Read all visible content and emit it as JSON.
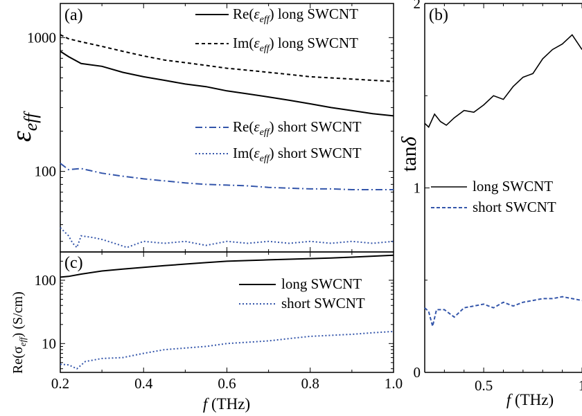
{
  "chart_data": [
    {
      "panel": "(a)",
      "type": "line",
      "ylabel_main": "ε",
      "ylabel_sub": "eff",
      "yscale": "log",
      "xlim": [
        0.2,
        1.0
      ],
      "ylim": [
        25,
        1800
      ],
      "yticks": [
        {
          "v": 1000,
          "label": "1000"
        },
        {
          "v": 100,
          "label": "100"
        }
      ],
      "legend": [
        {
          "pre": "Re(",
          "sym": "ε",
          "sub": "eff",
          "post": ") long SWCNT"
        },
        {
          "pre": "Im(",
          "sym": "ε",
          "sub": "eff",
          "post": ") long SWCNT"
        },
        {
          "pre": "Re(",
          "sym": "ε",
          "sub": "eff",
          "post": ") short SWCNT"
        },
        {
          "pre": "Im(",
          "sym": "ε",
          "sub": "eff",
          "post": ") short SWCNT"
        }
      ],
      "series": [
        {
          "id": "re-long",
          "color": "#000000",
          "dash": "",
          "width": 2,
          "x": [
            0.2,
            0.22,
            0.25,
            0.3,
            0.35,
            0.4,
            0.45,
            0.5,
            0.55,
            0.6,
            0.65,
            0.7,
            0.75,
            0.8,
            0.85,
            0.9,
            0.95,
            1.0
          ],
          "y": [
            790,
            720,
            640,
            610,
            550,
            510,
            480,
            450,
            430,
            400,
            380,
            360,
            340,
            320,
            300,
            285,
            270,
            260
          ]
        },
        {
          "id": "im-long",
          "color": "#000000",
          "dash": "5,4",
          "width": 2,
          "x": [
            0.2,
            0.22,
            0.25,
            0.3,
            0.35,
            0.4,
            0.45,
            0.5,
            0.55,
            0.6,
            0.65,
            0.7,
            0.75,
            0.8,
            0.85,
            0.9,
            0.95,
            1.0
          ],
          "y": [
            1050,
            980,
            930,
            860,
            790,
            730,
            680,
            650,
            620,
            590,
            570,
            550,
            530,
            510,
            500,
            490,
            480,
            470
          ]
        },
        {
          "id": "re-short",
          "color": "#3355aa",
          "dash": "10,4,2,4",
          "width": 2,
          "x": [
            0.2,
            0.22,
            0.25,
            0.3,
            0.35,
            0.4,
            0.45,
            0.5,
            0.55,
            0.6,
            0.65,
            0.7,
            0.75,
            0.8,
            0.85,
            0.9,
            0.95,
            1.0
          ],
          "y": [
            115,
            103,
            105,
            97,
            92,
            88,
            85,
            82,
            80,
            79,
            78,
            76,
            75,
            74,
            74,
            73,
            73,
            73
          ]
        },
        {
          "id": "im-short",
          "color": "#3355aa",
          "dash": "2,3",
          "width": 2,
          "x": [
            0.2,
            0.22,
            0.23,
            0.24,
            0.25,
            0.28,
            0.3,
            0.33,
            0.36,
            0.4,
            0.45,
            0.5,
            0.55,
            0.6,
            0.65,
            0.7,
            0.75,
            0.8,
            0.85,
            0.9,
            0.95,
            1.0
          ],
          "y": [
            38,
            33,
            29,
            27,
            33,
            32,
            31,
            29,
            27,
            30,
            29,
            30,
            28,
            30,
            29,
            30,
            29,
            30,
            29,
            30,
            29,
            30
          ]
        }
      ]
    },
    {
      "panel": "(c)",
      "type": "line",
      "ylabel": "Re(σ",
      "ylabel_sub": "eff",
      "ylabel_post": ")  (S/cm)",
      "yscale": "log",
      "xlim": [
        0.2,
        1.0
      ],
      "ylim": [
        3.5,
        280
      ],
      "xlabel_main": "f",
      "xlabel_post": " (THz)",
      "xticks": [
        {
          "v": 0.2,
          "label": "0.2"
        },
        {
          "v": 0.4,
          "label": "0.4"
        },
        {
          "v": 0.6,
          "label": "0.6"
        },
        {
          "v": 0.8,
          "label": "0.8"
        },
        {
          "v": 1.0,
          "label": "1.0"
        }
      ],
      "yticks": [
        {
          "v": 100,
          "label": "100"
        },
        {
          "v": 10,
          "label": "10"
        }
      ],
      "legend": [
        {
          "label": "long SWCNT"
        },
        {
          "label": "short SWCNT"
        }
      ],
      "series": [
        {
          "id": "sigma-long",
          "color": "#000000",
          "dash": "",
          "width": 2,
          "x": [
            0.2,
            0.22,
            0.25,
            0.3,
            0.35,
            0.4,
            0.45,
            0.5,
            0.55,
            0.6,
            0.65,
            0.7,
            0.75,
            0.8,
            0.85,
            0.9,
            0.95,
            1.0
          ],
          "y": [
            112,
            115,
            125,
            140,
            150,
            160,
            170,
            180,
            190,
            200,
            205,
            210,
            215,
            220,
            225,
            232,
            240,
            248
          ]
        },
        {
          "id": "sigma-short",
          "color": "#3355aa",
          "dash": "2,3",
          "width": 2,
          "x": [
            0.2,
            0.22,
            0.24,
            0.26,
            0.3,
            0.35,
            0.4,
            0.45,
            0.5,
            0.55,
            0.6,
            0.65,
            0.7,
            0.75,
            0.8,
            0.85,
            0.9,
            0.95,
            1.0
          ],
          "y": [
            4.7,
            4.6,
            4.0,
            5.2,
            5.8,
            6.0,
            7.0,
            8.0,
            8.5,
            9.0,
            10.0,
            10.5,
            11.0,
            12.0,
            13.0,
            13.5,
            14.0,
            14.8,
            15.5
          ]
        }
      ]
    },
    {
      "panel": "(b)",
      "type": "line",
      "ylabel_main": "tan",
      "ylabel_sym": "δ",
      "xlim": [
        0.2,
        1.0
      ],
      "ylim": [
        0,
        2
      ],
      "xlabel_main": "f",
      "xlabel_post": " (THz)",
      "xticks": [
        {
          "v": 0.5,
          "label": "0.5"
        },
        {
          "v": 1.0,
          "label": "1"
        }
      ],
      "yticks": [
        {
          "v": 0,
          "label": "0"
        },
        {
          "v": 1,
          "label": "1"
        },
        {
          "v": 2,
          "label": "2"
        }
      ],
      "legend": [
        {
          "label": "long SWCNT"
        },
        {
          "label": "short SWCNT"
        }
      ],
      "series": [
        {
          "id": "tan-long",
          "color": "#000000",
          "dash": "",
          "width": 1.6,
          "x": [
            0.2,
            0.22,
            0.25,
            0.28,
            0.31,
            0.35,
            0.4,
            0.45,
            0.5,
            0.55,
            0.6,
            0.65,
            0.7,
            0.75,
            0.8,
            0.85,
            0.9,
            0.95,
            1.0
          ],
          "y": [
            1.35,
            1.33,
            1.4,
            1.36,
            1.34,
            1.38,
            1.42,
            1.41,
            1.45,
            1.5,
            1.48,
            1.55,
            1.6,
            1.62,
            1.7,
            1.75,
            1.78,
            1.83,
            1.75
          ]
        },
        {
          "id": "tan-short",
          "color": "#3355aa",
          "dash": "5,3",
          "width": 2,
          "x": [
            0.2,
            0.22,
            0.24,
            0.26,
            0.3,
            0.35,
            0.4,
            0.45,
            0.5,
            0.55,
            0.6,
            0.65,
            0.7,
            0.75,
            0.8,
            0.85,
            0.9,
            0.95,
            1.0
          ],
          "y": [
            0.35,
            0.33,
            0.25,
            0.34,
            0.34,
            0.3,
            0.35,
            0.36,
            0.37,
            0.35,
            0.38,
            0.36,
            0.38,
            0.39,
            0.4,
            0.4,
            0.41,
            0.4,
            0.39
          ]
        }
      ]
    }
  ]
}
